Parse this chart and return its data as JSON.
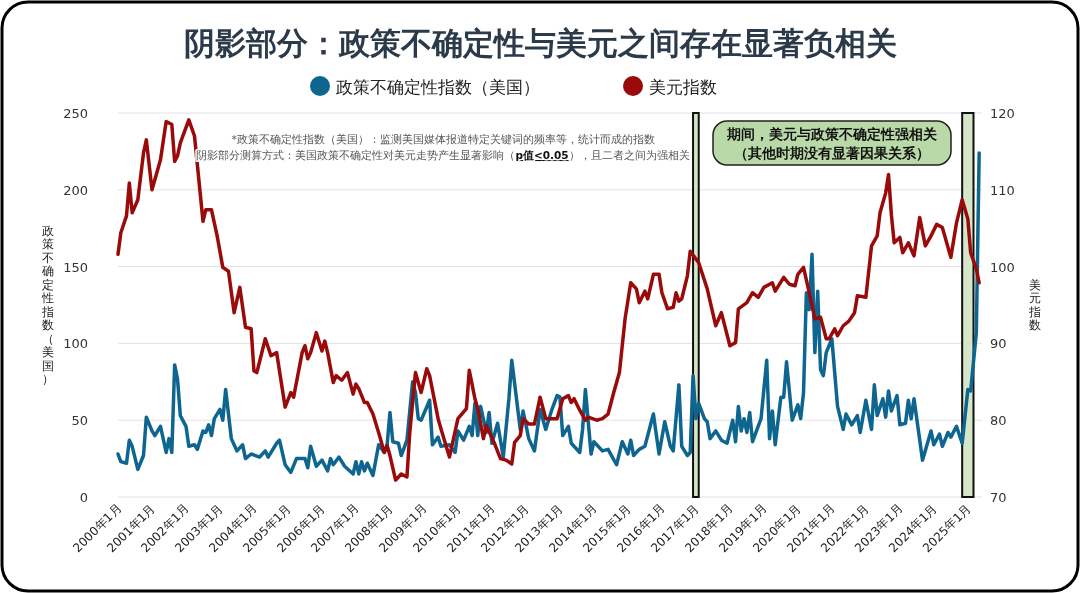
{
  "chart_data": {
    "type": "line",
    "title": "阴影部分：政策不确定性与美元之间存在显著负相关",
    "ylabel": "政策不确定性指数（美国）",
    "y2label": "美元指数",
    "annotations": [
      "*政策不确定性指数（美国）：监测美国媒体报道特定关键词的频率等，统计而成的指数",
      "阴影部分测算方式：美国政策不确定性对美元走势产生显著影响（**p值<0.05**），且二者之间为强相关",
      "期间，美元与政策不确定性强相关",
      "（其他时期没有显著因果关系）"
    ],
    "legend": "top",
    "grid": "y",
    "line_style": "solid",
    "marker": "none",
    "xlim": [
      "2000-01",
      "2025-06"
    ],
    "xticks": [
      {
        "value": "2000-01",
        "label": "2000年1月"
      },
      {
        "value": "2001-01",
        "label": "2001年1月"
      },
      {
        "value": "2002-01",
        "label": "2002年1月"
      },
      {
        "value": "2003-01",
        "label": "2003年1月"
      },
      {
        "value": "2004-01",
        "label": "2004年1月"
      },
      {
        "value": "2005-01",
        "label": "2005年1月"
      },
      {
        "value": "2006-01",
        "label": "2006年1月"
      },
      {
        "value": "2007-01",
        "label": "2007年1月"
      },
      {
        "value": "2008-01",
        "label": "2008年1月"
      },
      {
        "value": "2009-01",
        "label": "2009年1月"
      },
      {
        "value": "2010-01",
        "label": "2010年1月"
      },
      {
        "value": "2011-01",
        "label": "2011年1月"
      },
      {
        "value": "2012-01",
        "label": "2012年1月"
      },
      {
        "value": "2013-01",
        "label": "2013年1月"
      },
      {
        "value": "2014-01",
        "label": "2014年1月"
      },
      {
        "value": "2015-01",
        "label": "2015年1月"
      },
      {
        "value": "2016-01",
        "label": "2016年1月"
      },
      {
        "value": "2017-01",
        "label": "2017年1月"
      },
      {
        "value": "2018-01",
        "label": "2018年1月"
      },
      {
        "value": "2019-01",
        "label": "2019年1月"
      },
      {
        "value": "2020-01",
        "label": "2020年1月"
      },
      {
        "value": "2021-01",
        "label": "2021年1月"
      },
      {
        "value": "2022-01",
        "label": "2022年1月"
      },
      {
        "value": "2023-01",
        "label": "2023年1月"
      },
      {
        "value": "2024-01",
        "label": "2024年1月"
      },
      {
        "value": "2025-01",
        "label": "2025年1月"
      }
    ],
    "ylim": [
      0,
      250
    ],
    "yticks": [
      0,
      50,
      100,
      150,
      200,
      250
    ],
    "y2lim": [
      70,
      120
    ],
    "y2ticks": [
      70,
      80,
      90,
      100,
      110,
      120
    ],
    "bands": [
      {
        "axis": "x",
        "from": "2016-12",
        "to": "2017-02",
        "color": "#d5e6c9"
      },
      {
        "axis": "x",
        "from": "2024-11",
        "to": "2025-03",
        "color": "#d5e6c9"
      }
    ],
    "series": [
      {
        "name": "政策不确定性指数（美国）",
        "color": "#0e6590",
        "x": [
          "2000-01",
          "2000-02",
          "2000-04",
          "2000-05",
          "2000-06",
          "2000-08",
          "2000-10",
          "2000-11",
          "2001-01",
          "2001-02",
          "2001-04",
          "2001-06",
          "2001-07",
          "2001-08",
          "2001-09",
          "2001-10",
          "2001-11",
          "2002-01",
          "2002-02",
          "2002-04",
          "2002-05",
          "2002-07",
          "2002-08",
          "2002-09",
          "2002-10",
          "2002-11",
          "2003-01",
          "2003-02",
          "2003-03",
          "2003-05",
          "2003-07",
          "2003-09",
          "2003-10",
          "2003-12",
          "2004-03",
          "2004-05",
          "2004-06",
          "2004-09",
          "2004-10",
          "2004-12",
          "2005-02",
          "2005-04",
          "2005-07",
          "2005-08",
          "2005-09",
          "2005-11",
          "2006-01",
          "2006-03",
          "2006-04",
          "2006-05",
          "2006-07",
          "2006-09",
          "2006-12",
          "2007-01",
          "2007-02",
          "2007-03",
          "2007-04",
          "2007-05",
          "2007-07",
          "2007-09",
          "2007-11",
          "2007-12",
          "2008-01",
          "2008-02",
          "2008-04",
          "2008-05",
          "2008-07",
          "2008-09",
          "2008-10",
          "2008-11",
          "2008-12",
          "2009-03",
          "2009-04",
          "2009-06",
          "2009-07",
          "2009-10",
          "2009-12",
          "2010-01",
          "2010-03",
          "2010-05",
          "2010-06",
          "2010-07",
          "2010-08",
          "2010-09",
          "2010-11",
          "2010-12",
          "2011-01",
          "2011-03",
          "2011-05",
          "2011-07",
          "2011-08",
          "2011-11",
          "2011-12",
          "2012-02",
          "2012-04",
          "2012-06",
          "2012-08",
          "2012-10",
          "2012-12",
          "2013-01",
          "2013-02",
          "2013-04",
          "2013-05",
          "2013-08",
          "2013-09",
          "2013-10",
          "2013-12",
          "2014-01",
          "2014-04",
          "2014-06",
          "2014-09",
          "2014-11",
          "2015-01",
          "2015-02",
          "2015-03",
          "2015-05",
          "2015-07",
          "2015-10",
          "2015-12",
          "2016-02",
          "2016-04",
          "2016-05",
          "2016-07",
          "2016-08",
          "2016-10",
          "2016-11",
          "2016-12",
          "2017-01",
          "2017-02",
          "2017-04",
          "2017-05",
          "2017-06",
          "2017-08",
          "2017-10",
          "2017-12",
          "2018-02",
          "2018-03",
          "2018-04",
          "2018-05",
          "2018-06",
          "2018-07",
          "2018-08",
          "2018-09",
          "2018-12",
          "2019-02",
          "2019-03",
          "2019-04",
          "2019-05",
          "2019-07",
          "2019-08",
          "2019-09",
          "2019-11",
          "2020-01",
          "2020-02",
          "2020-03",
          "2020-04",
          "2020-05",
          "2020-06",
          "2020-07",
          "2020-08",
          "2020-09",
          "2020-10",
          "2020-11",
          "2021-01",
          "2021-03",
          "2021-05",
          "2021-06",
          "2021-08",
          "2021-10",
          "2021-11",
          "2022-01",
          "2022-03",
          "2022-04",
          "2022-05",
          "2022-07",
          "2022-08",
          "2022-09",
          "2022-10",
          "2022-12",
          "2023-01",
          "2023-03",
          "2023-04",
          "2023-05",
          "2023-06",
          "2023-09",
          "2023-12",
          "2024-01",
          "2024-03",
          "2024-04",
          "2024-06",
          "2024-07",
          "2024-09",
          "2024-11",
          "2025-01",
          "2025-02",
          "2025-04",
          "2025-05"
        ],
        "values": [
          28,
          23,
          22,
          37,
          33,
          18,
          27,
          52,
          43,
          40,
          46,
          29,
          38,
          29,
          86,
          77,
          53,
          46,
          33,
          34,
          31,
          43,
          42,
          47,
          40,
          51,
          57,
          50,
          70,
          38,
          30,
          34,
          25,
          28,
          26,
          30,
          26,
          35,
          37,
          21,
          16,
          25,
          25,
          19,
          33,
          20,
          24,
          17,
          25,
          21,
          26,
          20,
          15,
          23,
          15,
          23,
          17,
          22,
          14,
          34,
          29,
          34,
          55,
          36,
          35,
          27,
          37,
          75,
          68,
          51,
          50,
          63,
          34,
          39,
          33,
          34,
          29,
          43,
          37,
          46,
          40,
          61,
          40,
          59,
          42,
          55,
          35,
          48,
          26,
          64,
          89,
          44,
          56,
          38,
          30,
          57,
          44,
          56,
          66,
          65,
          40,
          46,
          35,
          29,
          44,
          70,
          28,
          36,
          30,
          31,
          21,
          36,
          28,
          37,
          27,
          31,
          33,
          54,
          28,
          49,
          33,
          30,
          73,
          33,
          27,
          29,
          79,
          51,
          61,
          51,
          49,
          38,
          43,
          37,
          35,
          50,
          36,
          59,
          43,
          51,
          42,
          55,
          36,
          51,
          89,
          38,
          56,
          34,
          65,
          65,
          88,
          50,
          60,
          51,
          68,
          133,
          122,
          158,
          94,
          134,
          83,
          79,
          94,
          103,
          59,
          44,
          54,
          47,
          53,
          42,
          63,
          44,
          73,
          53,
          64,
          52,
          69,
          56,
          66,
          47,
          48,
          63,
          51,
          64,
          24,
          43,
          34,
          41,
          33,
          42,
          39,
          46,
          35,
          70,
          69,
          107,
          224
        ]
      },
      {
        "name": "美元指数",
        "color": "#9b0a0a",
        "axis": "y2",
        "x": [
          "2000-01",
          "2000-02",
          "2000-04",
          "2000-05",
          "2000-06",
          "2000-08",
          "2000-10",
          "2000-11",
          "2001-01",
          "2001-04",
          "2001-06",
          "2001-08",
          "2001-09",
          "2001-10",
          "2001-11",
          "2002-02",
          "2002-04",
          "2002-07",
          "2002-08",
          "2002-10",
          "2002-12",
          "2003-02",
          "2003-04",
          "2003-06",
          "2003-08",
          "2003-10",
          "2003-12",
          "2004-01",
          "2004-02",
          "2004-05",
          "2004-07",
          "2004-09",
          "2004-12",
          "2005-02",
          "2005-03",
          "2005-06",
          "2005-07",
          "2005-08",
          "2005-09",
          "2005-11",
          "2006-01",
          "2006-02",
          "2006-03",
          "2006-05",
          "2006-06",
          "2006-08",
          "2006-10",
          "2006-12",
          "2007-01",
          "2007-02",
          "2007-04",
          "2007-05",
          "2007-07",
          "2007-09",
          "2007-11",
          "2007-12",
          "2008-01",
          "2008-03",
          "2008-05",
          "2008-07",
          "2008-08",
          "2008-10",
          "2008-12",
          "2009-02",
          "2009-03",
          "2009-06",
          "2009-07",
          "2009-10",
          "2010-01",
          "2010-04",
          "2010-05",
          "2010-07",
          "2010-08",
          "2010-10",
          "2010-11",
          "2011-02",
          "2011-04",
          "2011-06",
          "2011-08",
          "2011-09",
          "2011-11",
          "2011-12",
          "2012-02",
          "2012-04",
          "2012-06",
          "2012-08",
          "2012-10",
          "2012-12",
          "2013-02",
          "2013-04",
          "2013-05",
          "2013-06",
          "2013-08",
          "2013-10",
          "2013-11",
          "2014-02",
          "2014-04",
          "2014-06",
          "2014-08",
          "2014-10",
          "2014-12",
          "2015-02",
          "2015-04",
          "2015-05",
          "2015-07",
          "2015-08",
          "2015-10",
          "2015-12",
          "2016-01",
          "2016-03",
          "2016-05",
          "2016-06",
          "2016-07",
          "2016-08",
          "2016-10",
          "2016-11",
          "2017-02",
          "2017-05",
          "2017-08",
          "2017-10",
          "2018-01",
          "2018-03",
          "2018-04",
          "2018-07",
          "2018-09",
          "2018-11",
          "2019-01",
          "2019-04",
          "2019-05",
          "2019-08",
          "2019-10",
          "2019-12",
          "2020-01",
          "2020-03",
          "2020-05",
          "2020-07",
          "2020-09",
          "2020-11",
          "2020-12",
          "2021-02",
          "2021-03",
          "2021-05",
          "2021-07",
          "2021-09",
          "2021-10",
          "2022-01",
          "2022-03",
          "2022-05",
          "2022-06",
          "2022-08",
          "2022-09",
          "2022-10",
          "2022-11",
          "2023-01",
          "2023-02",
          "2023-04",
          "2023-06",
          "2023-08",
          "2023-10",
          "2023-12",
          "2024-02",
          "2024-04",
          "2024-07",
          "2024-09",
          "2024-11",
          "2025-01",
          "2025-02",
          "2025-04",
          "2025-05"
        ],
        "values": [
          101.6,
          104.4,
          106.6,
          110.9,
          107.0,
          108.7,
          114.8,
          116.5,
          110.0,
          113.9,
          118.9,
          118.5,
          113.7,
          114.4,
          116.1,
          119.1,
          117.0,
          105.9,
          107.4,
          107.4,
          104.0,
          99.9,
          99.4,
          94.0,
          97.3,
          92.1,
          91.9,
          86.4,
          86.2,
          90.6,
          88.4,
          88.8,
          81.7,
          83.6,
          83.0,
          88.8,
          89.7,
          88.0,
          88.8,
          91.4,
          89.0,
          90.3,
          88.8,
          84.9,
          85.8,
          85.2,
          86.2,
          83.4,
          84.7,
          84.1,
          82.3,
          82.3,
          80.8,
          78.4,
          75.8,
          76.7,
          75.4,
          72.2,
          73.0,
          72.6,
          78.4,
          86.2,
          83.6,
          86.7,
          85.8,
          80.2,
          78.9,
          75.2,
          80.2,
          81.5,
          86.5,
          82.8,
          81.5,
          77.6,
          79.3,
          76.9,
          75.0,
          74.8,
          74.3,
          77.1,
          78.0,
          80.2,
          79.5,
          79.5,
          83.0,
          80.2,
          80.2,
          80.2,
          82.8,
          83.2,
          82.3,
          82.8,
          81.3,
          80.0,
          80.4,
          80.0,
          80.2,
          80.8,
          83.6,
          86.2,
          93.2,
          97.9,
          97.1,
          95.3,
          96.8,
          95.8,
          99.0,
          99.0,
          96.6,
          94.5,
          94.7,
          96.6,
          95.5,
          95.8,
          98.8,
          102.0,
          100.5,
          97.1,
          92.3,
          94.0,
          89.7,
          90.1,
          94.5,
          95.3,
          96.6,
          96.0,
          97.3,
          97.9,
          96.8,
          98.6,
          97.7,
          97.5,
          99.0,
          99.9,
          96.6,
          93.2,
          93.4,
          90.6,
          90.6,
          91.9,
          91.0,
          92.3,
          92.9,
          94.0,
          96.2,
          96.0,
          102.7,
          104.0,
          107.0,
          109.6,
          112.0,
          106.8,
          103.1,
          103.8,
          101.8,
          103.1,
          101.4,
          106.4,
          102.7,
          104.0,
          105.5,
          105.1,
          101.2,
          105.7,
          108.7,
          106.2,
          101.8,
          99.7,
          97.9
        ]
      }
    ]
  }
}
